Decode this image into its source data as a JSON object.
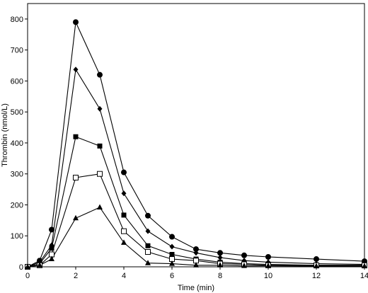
{
  "chart_data": {
    "type": "line",
    "title": "",
    "xlabel": "Time (min)",
    "ylabel": "Thrombin (nmol/L)",
    "xlim": [
      0,
      14
    ],
    "ylim": [
      0,
      850
    ],
    "xticks": [
      0,
      2,
      4,
      6,
      8,
      10,
      12,
      14
    ],
    "yticks": [
      0,
      100,
      200,
      300,
      400,
      500,
      600,
      700,
      800
    ],
    "grid": false,
    "legend": "none",
    "series": [
      {
        "marker": "filled-circle",
        "x": [
          0,
          0.5,
          1,
          2,
          3,
          4,
          5,
          6,
          7,
          8,
          9,
          10,
          12,
          14
        ],
        "y": [
          0,
          20,
          120,
          790,
          620,
          305,
          165,
          97,
          57,
          45,
          37,
          32,
          25,
          18
        ]
      },
      {
        "marker": "filled-diamond",
        "x": [
          0,
          0.5,
          1,
          2,
          3,
          4,
          5,
          6,
          7,
          8,
          9,
          10,
          12,
          14
        ],
        "y": [
          0,
          15,
          70,
          637,
          510,
          237,
          115,
          65,
          45,
          30,
          20,
          15,
          10,
          8
        ]
      },
      {
        "marker": "filled-square",
        "x": [
          0,
          0.5,
          1,
          2,
          3,
          4,
          5,
          6,
          7,
          8,
          9,
          10,
          12,
          14
        ],
        "y": [
          0,
          10,
          60,
          420,
          390,
          167,
          68,
          40,
          25,
          15,
          10,
          8,
          5,
          5
        ]
      },
      {
        "marker": "open-square",
        "x": [
          0,
          0.5,
          1,
          2,
          3,
          4,
          5,
          6,
          7,
          8,
          9,
          10,
          12,
          14
        ],
        "y": [
          0,
          5,
          40,
          288,
          300,
          115,
          48,
          25,
          20,
          10,
          8,
          5,
          5,
          5
        ]
      },
      {
        "marker": "filled-triangle",
        "x": [
          0,
          0.5,
          1,
          2,
          3,
          4,
          5,
          6,
          7,
          8,
          9,
          10,
          12,
          14
        ],
        "y": [
          0,
          5,
          25,
          157,
          192,
          78,
          12,
          10,
          5,
          5,
          3,
          3,
          2,
          2
        ]
      }
    ]
  }
}
